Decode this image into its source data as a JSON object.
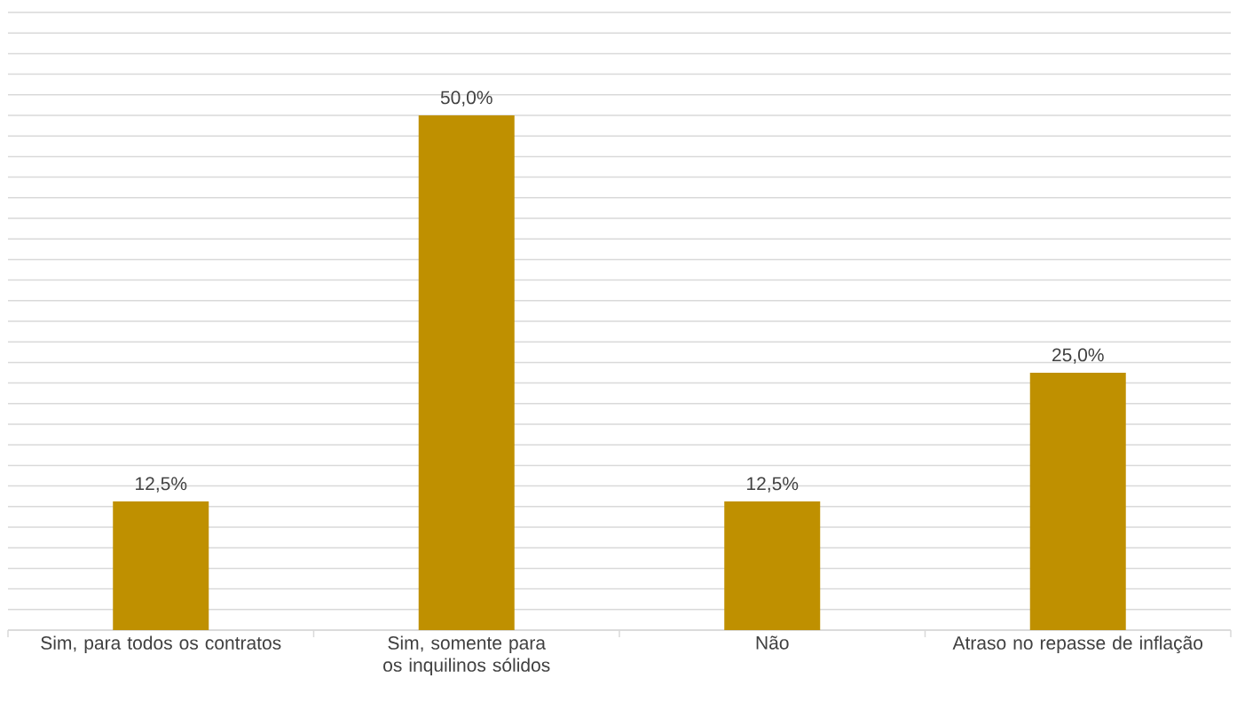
{
  "chart_data": {
    "type": "bar",
    "categories": [
      "Sim, para todos os contratos",
      "Sim, somente para os inquilinos sólidos",
      "Não",
      "Atraso no repasse de inflação"
    ],
    "values": [
      12.5,
      50.0,
      12.5,
      25.0
    ],
    "value_labels": [
      "12,5%",
      "50,0%",
      "12,5%",
      "25,0%"
    ],
    "color": "#bf9000",
    "grid": "y",
    "tick_labels": "x"
  }
}
